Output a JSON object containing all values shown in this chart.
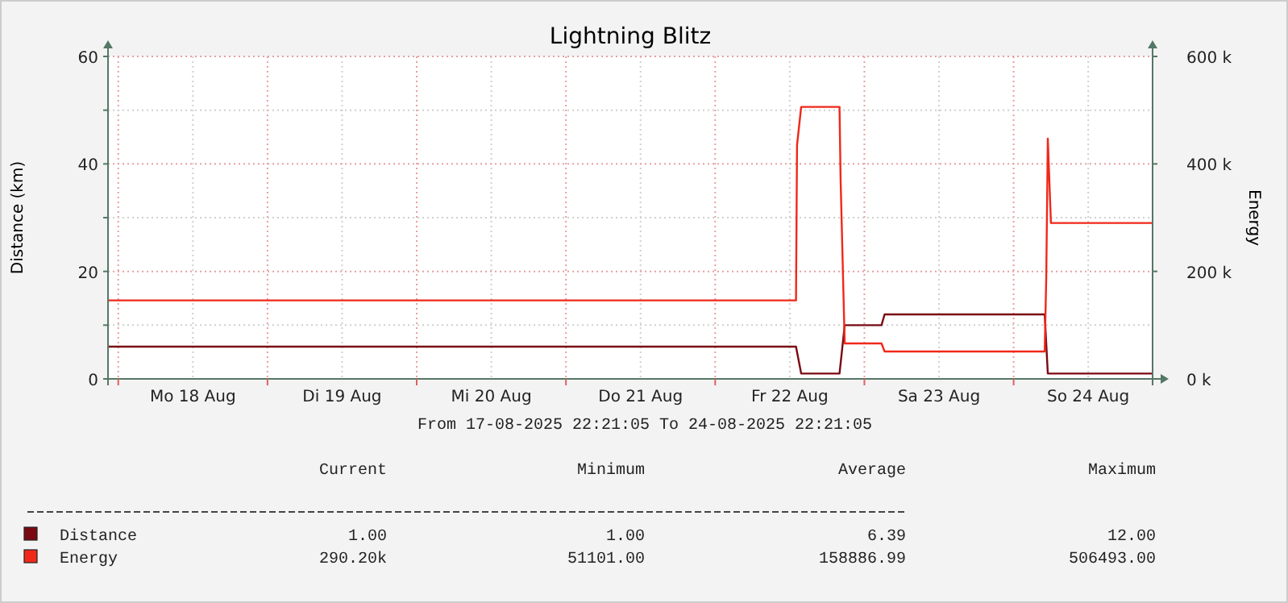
{
  "chart_data": {
    "type": "line",
    "title": "Lightning Blitz",
    "ylabel": "Distance (km)",
    "y2label": "Energy",
    "xlim": [
      "2025-08-17T22:21",
      "2025-08-24T22:21"
    ],
    "xticks": [
      {
        "value": "2025-08-18T00:00",
        "label": null
      },
      {
        "value": "2025-08-18T12:00",
        "label": "Mo 18 Aug"
      },
      {
        "value": "2025-08-19T00:00",
        "label": null
      },
      {
        "value": "2025-08-19T12:00",
        "label": "Di 19 Aug"
      },
      {
        "value": "2025-08-20T00:00",
        "label": null
      },
      {
        "value": "2025-08-20T12:00",
        "label": "Mi 20 Aug"
      },
      {
        "value": "2025-08-21T00:00",
        "label": null
      },
      {
        "value": "2025-08-21T12:00",
        "label": "Do 21 Aug"
      },
      {
        "value": "2025-08-22T00:00",
        "label": null
      },
      {
        "value": "2025-08-22T12:00",
        "label": "Fr 22 Aug"
      },
      {
        "value": "2025-08-23T00:00",
        "label": null
      },
      {
        "value": "2025-08-23T12:00",
        "label": "Sa 23 Aug"
      },
      {
        "value": "2025-08-24T00:00",
        "label": null
      },
      {
        "value": "2025-08-24T12:00",
        "label": "So 24 Aug"
      }
    ],
    "ylim": [
      0,
      60
    ],
    "yticks": [
      0,
      {
        "value": 10,
        "label": null
      },
      20,
      {
        "value": 30,
        "label": null
      },
      40,
      {
        "value": 50,
        "label": null
      },
      60
    ],
    "y2lim": [
      0,
      600000
    ],
    "y2ticks": [
      {
        "value": 0,
        "label": "0 k"
      },
      {
        "value": 200000,
        "label": "200 k"
      },
      {
        "value": 400000,
        "label": "400 k"
      },
      {
        "value": 600000,
        "label": "600 k"
      }
    ],
    "grid": true,
    "legend": "bottom",
    "series": [
      {
        "name": "Distance",
        "color": "#7a0a12",
        "x": [
          "2025-08-17T22:21",
          "2025-08-22T13:00",
          "2025-08-22T13:50",
          "2025-08-22T20:00",
          "2025-08-22T20:50",
          "2025-08-23T02:45",
          "2025-08-23T03:15",
          "2025-08-24T05:00",
          "2025-08-24T05:30",
          "2025-08-24T22:21"
        ],
        "values": [
          6,
          6,
          1,
          1,
          10,
          10,
          12,
          12,
          1,
          1
        ]
      },
      {
        "name": "Energy",
        "color": "#f0281a",
        "axis": "y2",
        "x": [
          "2025-08-17T22:21",
          "2025-08-22T13:00",
          "2025-08-22T13:10",
          "2025-08-22T13:50",
          "2025-08-22T20:00",
          "2025-08-22T20:10",
          "2025-08-22T20:50",
          "2025-08-23T02:45",
          "2025-08-23T03:15",
          "2025-08-24T05:00",
          "2025-08-24T05:15",
          "2025-08-24T05:30",
          "2025-08-24T06:00",
          "2025-08-24T22:21"
        ],
        "values": [
          146000,
          146000,
          435000,
          506000,
          506000,
          375000,
          66000,
          66000,
          51000,
          51000,
          190000,
          447000,
          290000,
          290000
        ]
      }
    ],
    "annotations": [
      "From 17-08-2025 22:21:05 To 24-08-2025 22:21:05",
      "Current",
      "Minimum",
      "Average",
      "Maximum",
      "1.00",
      "1.00",
      "6.39",
      "12.00",
      "290.20k",
      "51101.00",
      "158886.99",
      "506493.00"
    ]
  }
}
